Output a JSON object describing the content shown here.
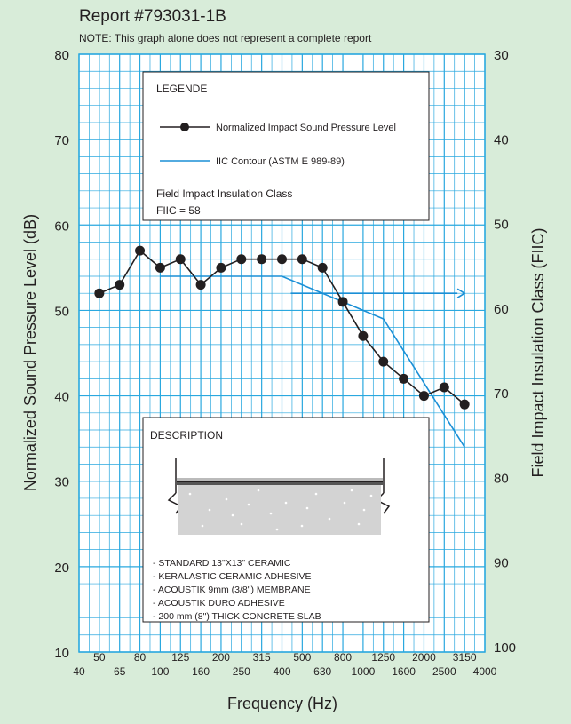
{
  "report_title": "Report #793031-1B",
  "note": "NOTE: This graph alone does not represent a complete report",
  "colors": {
    "background": "#d8ecd9",
    "grid": "#2aa8df",
    "plot_bg": "#ffffff",
    "contour": "#1a8fd6",
    "series": "#231f20"
  },
  "chart_data": {
    "type": "line",
    "title": "Report #793031-1B",
    "xlabel": "Frequency (Hz)",
    "ylabel": "Normalized Sound Pressure Level (dB)",
    "y2label": "Field Impact Insulation Class (FIIC)",
    "ylim": [
      10,
      80
    ],
    "y2lim": [
      100,
      30
    ],
    "y_ticks": [
      "10",
      "20",
      "30",
      "40",
      "50",
      "60",
      "70",
      "80"
    ],
    "y2_ticks": [
      "100",
      "90",
      "80",
      "70",
      "60",
      "50",
      "40",
      "30"
    ],
    "x_ticks_upper": [
      "50",
      "80",
      "125",
      "200",
      "315",
      "500",
      "800",
      "1250",
      "2000",
      "3150"
    ],
    "x_ticks_lower": [
      "40",
      "65",
      "100",
      "160",
      "250",
      "400",
      "630",
      "1000",
      "1600",
      "2500",
      "4000"
    ],
    "series": [
      {
        "name": "Normalized Impact Sound Pressure Level",
        "x": [
          50,
          63,
          80,
          100,
          125,
          160,
          200,
          250,
          315,
          400,
          500,
          630,
          800,
          1000,
          1250,
          1600,
          2000,
          2500,
          3150
        ],
        "values": [
          52,
          53,
          57,
          55,
          56,
          53,
          55,
          56,
          56,
          56,
          56,
          55,
          51,
          47,
          44,
          42,
          40,
          41,
          39
        ]
      },
      {
        "name": "IIC Contour (ASTM E 989-89)",
        "x": [
          100,
          400,
          1250,
          3150
        ],
        "values": [
          54,
          54,
          49,
          34
        ]
      }
    ],
    "arrow_y": 52
  },
  "legend": {
    "title": "LEGENDE",
    "item1": "Normalized Impact Sound Pressure Level",
    "item2": "IIC Contour (ASTM E 989-89)",
    "fiic_label": "Field Impact Insulation Class",
    "fiic_value": "FIIC = 58"
  },
  "description": {
    "title": "DESCRIPTION",
    "items": [
      "- STANDARD 13\"X13\" CERAMIC",
      "- KERALASTIC CERAMIC ADHESIVE",
      " - ACOUSTIK 9mm (3/8\") MEMBRANE",
      " - ACOUSTIK DURO ADHESIVE",
      " - 200 mm (8\") THICK CONCRETE SLAB"
    ]
  }
}
